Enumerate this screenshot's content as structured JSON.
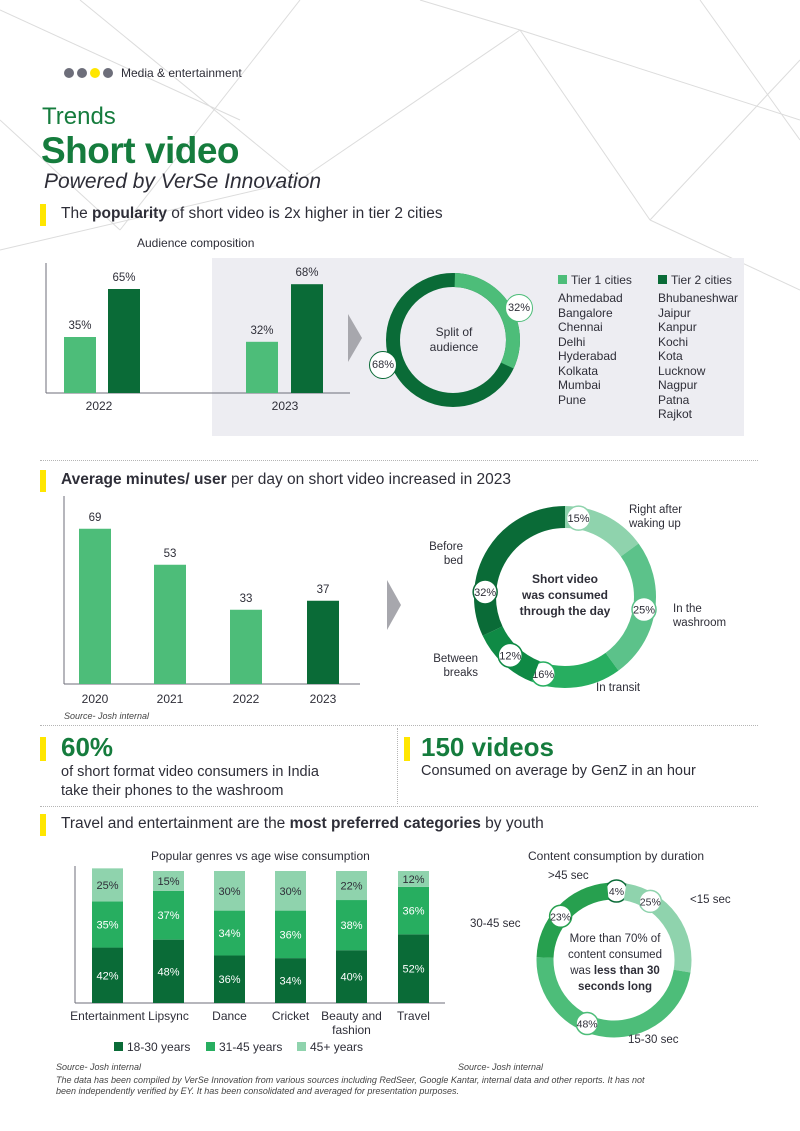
{
  "header": {
    "breadcrumb": "Media & entertainment",
    "trends": "Trends",
    "title": "Short video",
    "subtitle": "Powered by VerSe Innovation",
    "dot_colors": [
      "#6d6e7a",
      "#6d6e7a",
      "#ffe600",
      "#6d6e7a"
    ]
  },
  "section1": {
    "headline_pre": "The ",
    "headline_bold": "popularity",
    "headline_post": " of short video is 2x higher in tier 2 cities",
    "chart_title": "Audience composition",
    "donut_center_line1": "Split of",
    "donut_center_line2": "audience",
    "donut_tier1_label": "32%",
    "donut_tier2_label": "68%",
    "legend_tier1": "Tier 1 cities",
    "legend_tier2": "Tier 2 cities",
    "tier1_cities": [
      "Ahmedabad",
      "Bangalore",
      "Chennai",
      "Delhi",
      "Hyderabad",
      "Kolkata",
      "Mumbai",
      "Pune"
    ],
    "tier2_cities": [
      "Bhubaneshwar",
      "Jaipur",
      "Kanpur",
      "Kochi",
      "Kota",
      "Lucknow",
      "Nagpur",
      "Patna",
      "Rajkot"
    ]
  },
  "section2": {
    "headline_bold": "Average minutes/ user",
    "headline_post": " per day on short video increased in 2023",
    "source": "Source- Josh internal",
    "donut_center": [
      "Short video",
      "was consumed",
      "through the day"
    ],
    "slices": [
      {
        "pct": "15%",
        "label": [
          "Right after",
          "waking up"
        ]
      },
      {
        "pct": "25%",
        "label": [
          "In the",
          "washroom"
        ]
      },
      {
        "pct": "16%",
        "label": [
          "In transit"
        ]
      },
      {
        "pct": "12%",
        "label": [
          "Between",
          "breaks"
        ]
      },
      {
        "pct": "32%",
        "label": [
          "Before",
          "bed"
        ]
      }
    ]
  },
  "stats": {
    "stat1_value": "60%",
    "stat1_line1": "of short format video consumers in India",
    "stat1_line2": "take their phones to the washroom",
    "stat2_value": "150 videos",
    "stat2_line1": "Consumed on average by GenZ in an hour"
  },
  "section3": {
    "headline_pre": "Travel and entertainment are the ",
    "headline_bold": "most preferred categories",
    "headline_post": " by youth",
    "chart_title": "Popular genres vs age wise consumption",
    "legend": [
      "18-30 years",
      "31-45 years",
      "45+ years"
    ],
    "source_left": "Source- Josh internal",
    "duration_title": "Content consumption by duration",
    "duration_center": [
      "More than 70% of",
      "content consumed",
      "was "
    ],
    "duration_center_bold1": "less than 30",
    "duration_center_bold2": "seconds long",
    "duration_slices": [
      {
        "pct": "4%",
        "label": ">45 sec"
      },
      {
        "pct": "25%",
        "label": "<15 sec"
      },
      {
        "pct": "48%",
        "label": "15-30 sec"
      },
      {
        "pct": "23%",
        "label": "30-45 sec"
      }
    ],
    "source_right": "Source- Josh internal"
  },
  "footer": {
    "disclaimer_line1": "The data has been compiled by VerSe Innovation from various sources including RedSeer, Google Kantar, internal data and other reports. It has not",
    "disclaimer_line2": "been independently verified by EY. It has been consolidated and averaged for presentation purposes."
  },
  "colors": {
    "dark_green": "#0a6b37",
    "mid_green": "#4dbd79",
    "light_green": "#8fd3ad",
    "yellow": "#ffe600",
    "panel_gray": "#ededf2",
    "title_green": "#157c3d",
    "bright_green": "#27ae60"
  },
  "chart_data": [
    {
      "type": "bar",
      "title": "Audience composition",
      "categories": [
        "2022",
        "2023"
      ],
      "series": [
        {
          "name": "Tier 1 cities",
          "values": [
            35,
            32
          ]
        },
        {
          "name": "Tier 2 cities",
          "values": [
            65,
            68
          ]
        }
      ],
      "value_labels": [
        [
          "35%",
          "32%"
        ],
        [
          "65%",
          "68%"
        ]
      ],
      "ylim": [
        0,
        100
      ]
    },
    {
      "type": "pie",
      "categories": [
        "Tier 1 cities",
        "Tier 2 cities"
      ],
      "values": [
        32,
        68
      ]
    },
    {
      "type": "bar",
      "categories": [
        "2020",
        "2021",
        "2022",
        "2023"
      ],
      "values": [
        69,
        53,
        33,
        37
      ],
      "ylim": [
        0,
        80
      ]
    },
    {
      "type": "pie",
      "categories": [
        "Right after waking up",
        "In the washroom",
        "In transit",
        "Between breaks",
        "Before bed"
      ],
      "values": [
        15,
        25,
        16,
        12,
        32
      ]
    },
    {
      "type": "bar",
      "stacked": true,
      "title": "Popular genres vs age wise consumption",
      "categories": [
        "Entertainment",
        "Lipsync",
        "Dance",
        "Cricket",
        "Beauty and fashion",
        "Travel"
      ],
      "category_lines": [
        [
          "Entertainment"
        ],
        [
          "Lipsync"
        ],
        [
          "Dance"
        ],
        [
          "Cricket"
        ],
        [
          "Beauty and",
          "fashion"
        ],
        [
          "Travel"
        ]
      ],
      "series": [
        {
          "name": "18-30 years",
          "values": [
            42,
            48,
            36,
            34,
            40,
            52
          ]
        },
        {
          "name": "31-45 years",
          "values": [
            35,
            37,
            34,
            36,
            38,
            36
          ]
        },
        {
          "name": "45+ years",
          "values": [
            25,
            15,
            30,
            30,
            22,
            12
          ]
        }
      ],
      "legend": "bottom"
    },
    {
      "type": "pie",
      "title": "Content consumption by duration",
      "categories": [
        ">45 sec",
        "<15 sec",
        "15-30 sec",
        "30-45 sec"
      ],
      "values": [
        4,
        25,
        48,
        23
      ]
    }
  ]
}
